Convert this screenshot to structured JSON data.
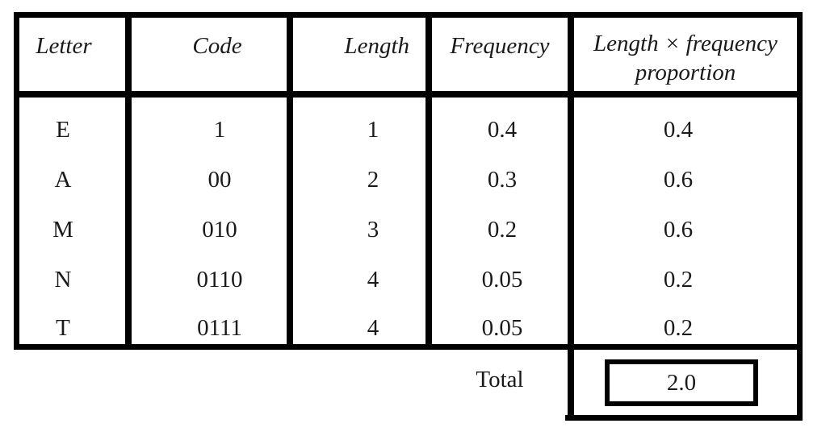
{
  "table": {
    "headers": [
      "Letter",
      "Code",
      "Length",
      "Frequency",
      "Length × frequency proportion"
    ],
    "header_last_lines": [
      "Length × frequency",
      "proportion"
    ],
    "rows": [
      [
        "E",
        "1",
        "1",
        "0.4",
        "0.4"
      ],
      [
        "A",
        "00",
        "2",
        "0.3",
        "0.6"
      ],
      [
        "M",
        "010",
        "3",
        "0.2",
        "0.6"
      ],
      [
        "N",
        "0110",
        "4",
        "0.05",
        "0.2"
      ],
      [
        "T",
        "0111",
        "4",
        "0.05",
        "0.2"
      ]
    ],
    "total_label": "Total",
    "total_value": "2.0"
  }
}
